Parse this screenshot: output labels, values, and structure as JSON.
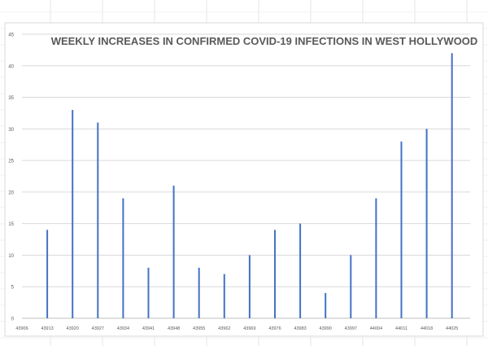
{
  "chart_data": {
    "type": "bar",
    "title": "WEEKLY INCREASES IN CONFIRMED COVID-19 INFECTIONS IN WEST HOLLYWOOD",
    "xlabel": "",
    "ylabel": "",
    "x_ticks": [
      43906,
      43913,
      43920,
      43927,
      43934,
      43941,
      43948,
      43955,
      43962,
      43969,
      43976,
      43983,
      43990,
      43997,
      44004,
      44011,
      44018,
      44025
    ],
    "x_tick_labels": [
      "43906",
      "43913",
      "43920",
      "43927",
      "43934",
      "43941",
      "43948",
      "43955",
      "43962",
      "43969",
      "43976",
      "43983",
      "43990",
      "43997",
      "44004",
      "44011",
      "44018",
      "44025"
    ],
    "x": [
      43913,
      43920,
      43927,
      43934,
      43941,
      43948,
      43955,
      43962,
      43969,
      43976,
      43983,
      43990,
      43997,
      44004,
      44011,
      44018,
      44025
    ],
    "values": [
      14,
      33,
      31,
      19,
      8,
      21,
      8,
      7,
      10,
      14,
      15,
      4,
      10,
      19,
      28,
      30,
      42
    ],
    "xlim": [
      43906,
      44025
    ],
    "ylim": [
      0,
      45
    ],
    "y_ticks": [
      0,
      5,
      10,
      15,
      20,
      25,
      30,
      35,
      40,
      45
    ],
    "grid": true,
    "bar_color": "#4472c4"
  }
}
